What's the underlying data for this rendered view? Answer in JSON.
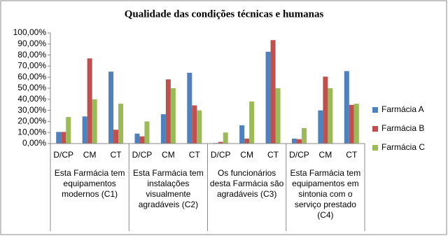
{
  "chart_data": {
    "type": "bar",
    "title": "Qualidade das condições técnicas e humanas",
    "categories": [
      "D/CP",
      "CM",
      "CT",
      "D/CP",
      "CM",
      "CT",
      "D/CP",
      "CM",
      "CT",
      "D/CP",
      "CM",
      "CT"
    ],
    "groups": [
      "Esta Farmácia tem equipamentos modernos (C1)",
      "Esta Farmácia tem instalações visualmente agradáveis (C2)",
      "Os funcionários desta Farmácia são agradáveis (C3)",
      "Esta Farmácia tem equipamentos em sintonia com o serviço prestado (C4)"
    ],
    "series": [
      {
        "name": "Farmácia A",
        "color": "#4f81bd",
        "values": [
          10.5,
          24.5,
          65,
          9,
          26.5,
          64,
          0.5,
          16.5,
          83,
          4.5,
          30,
          65.5
        ]
      },
      {
        "name": "Farmácia B",
        "color": "#c0504d",
        "values": [
          10.5,
          77,
          12.5,
          6.5,
          58,
          34.5,
          1.5,
          4.5,
          93.5,
          4,
          60.5,
          35
        ]
      },
      {
        "name": "Farmácia C",
        "color": "#9bbb59",
        "values": [
          24,
          40,
          36,
          20,
          50,
          30,
          10,
          38,
          50,
          14,
          50,
          36
        ]
      }
    ],
    "ylim": [
      0,
      100
    ],
    "yticks": [
      {
        "value": 0,
        "label": "0,00%"
      },
      {
        "value": 10,
        "label": "10,00%"
      },
      {
        "value": 20,
        "label": "20,00%"
      },
      {
        "value": 30,
        "label": "30,00%"
      },
      {
        "value": 40,
        "label": "40,00%"
      },
      {
        "value": 50,
        "label": "50,00%"
      },
      {
        "value": 60,
        "label": "60,00%"
      },
      {
        "value": 70,
        "label": "70,00%"
      },
      {
        "value": 80,
        "label": "80,00%"
      },
      {
        "value": 90,
        "label": "90,00%"
      },
      {
        "value": 100,
        "label": "100,00%"
      }
    ],
    "grid": false,
    "legend": "right"
  }
}
